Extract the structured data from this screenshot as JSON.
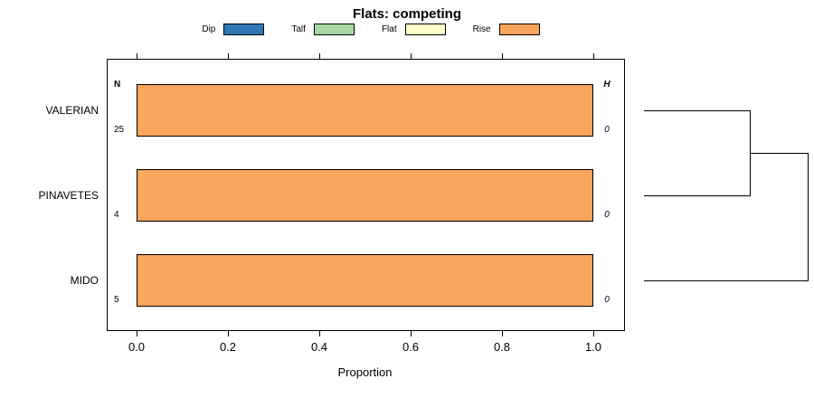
{
  "title": "Flats: competing",
  "legend": {
    "items": [
      {
        "label": "Dip",
        "color": "#2e79b5"
      },
      {
        "label": "Talf",
        "color": "#a8d8a2"
      },
      {
        "label": "Flat",
        "color": "#ffffc9"
      },
      {
        "label": "Rise",
        "color": "#f9a55c"
      }
    ]
  },
  "chart_data": {
    "type": "bar",
    "orientation": "horizontal",
    "title": "Flats: competing",
    "xlabel": "Proportion",
    "xlim": [
      0,
      1
    ],
    "x_ticks": [
      "0.0",
      "0.2",
      "0.4",
      "0.6",
      "0.8",
      "1.0"
    ],
    "categories": [
      "VALERIAN",
      "PINAVETES",
      "MIDO"
    ],
    "series": [
      {
        "name": "Dip",
        "values": [
          0,
          0,
          0
        ]
      },
      {
        "name": "Talf",
        "values": [
          0,
          0,
          0
        ]
      },
      {
        "name": "Flat",
        "values": [
          0,
          0,
          0
        ]
      },
      {
        "name": "Rise",
        "values": [
          1.0,
          1.0,
          1.0
        ]
      }
    ],
    "n_column": {
      "header": "N",
      "values": [
        25,
        4,
        5
      ]
    },
    "h_column": {
      "header": "H",
      "values": [
        0,
        0,
        0
      ]
    },
    "dendrogram": {
      "description": "VALERIAN and PINAVETES cluster first; MIDO joins that cluster at a greater height",
      "merges": [
        [
          "VALERIAN",
          "PINAVETES"
        ],
        [
          [
            "VALERIAN",
            "PINAVETES"
          ],
          "MIDO"
        ]
      ]
    }
  }
}
